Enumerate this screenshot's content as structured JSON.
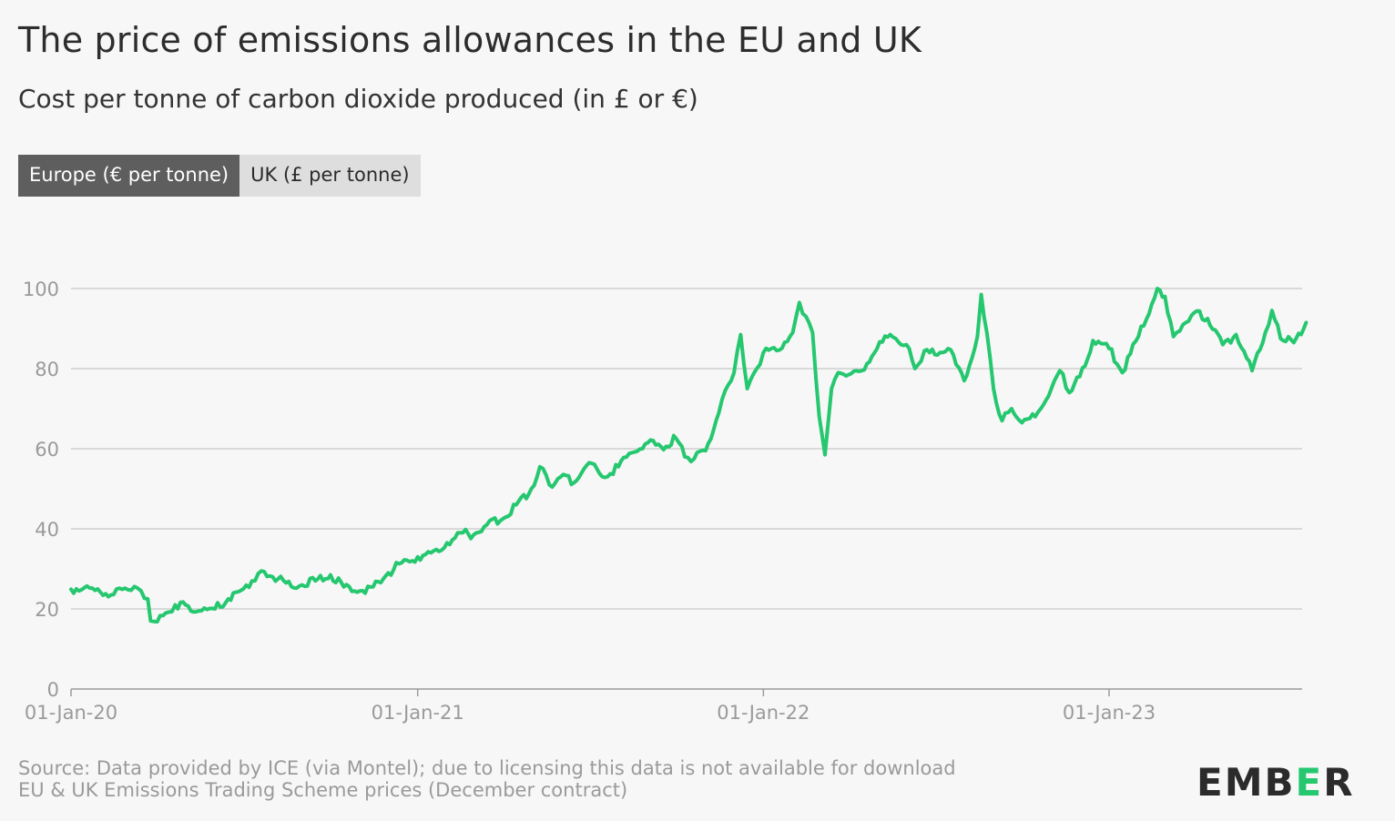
{
  "header": {
    "title": "The price of emissions allowances in the EU and UK",
    "subtitle": "Cost per tonne of carbon dioxide produced (in £ or €)"
  },
  "tabs": [
    {
      "label": "Europe (€ per tonne)",
      "active": true
    },
    {
      "label": "UK (£ per tonne)",
      "active": false
    }
  ],
  "footer": {
    "source": "Source: Data provided by ICE (via Montel); due to licensing this data is not available for download",
    "note": "EU & UK Emissions Trading Scheme prices (December contract)"
  },
  "logo": {
    "pre": "EMB",
    "accent": "E",
    "post": "R"
  },
  "colors": {
    "line": "#25c76f",
    "grid": "#cfcfcf",
    "axis": "#9a9a9a",
    "active_tab": "#5e5e5e",
    "inactive_tab": "#dedede"
  },
  "chart_data": {
    "type": "line",
    "title": "The price of emissions allowances in the EU and UK",
    "subtitle": "Cost per tonne of carbon dioxide produced (in £ or €)",
    "xlabel": "",
    "ylabel": "",
    "ylim": [
      0,
      100
    ],
    "yticks": [
      0,
      20,
      40,
      60,
      80,
      100
    ],
    "xticks": [
      "01-Jan-20",
      "01-Jan-21",
      "01-Jan-22",
      "01-Jan-23"
    ],
    "xlim": [
      "2020-01-01",
      "2023-07-28"
    ],
    "grid": true,
    "legend": "none",
    "series": [
      {
        "name": "Europe (€ per tonne)",
        "color": "#25c76f",
        "points": [
          [
            "2020-01-01",
            24.9
          ],
          [
            "2020-01-15",
            25.3
          ],
          [
            "2020-02-01",
            24.2
          ],
          [
            "2020-02-15",
            23.6
          ],
          [
            "2020-03-01",
            24.8
          ],
          [
            "2020-03-08",
            25.6
          ],
          [
            "2020-03-15",
            24.5
          ],
          [
            "2020-03-22",
            22.5
          ],
          [
            "2020-03-25",
            17.0
          ],
          [
            "2020-04-01",
            16.8
          ],
          [
            "2020-04-10",
            19.0
          ],
          [
            "2020-04-20",
            21.0
          ],
          [
            "2020-05-01",
            21.0
          ],
          [
            "2020-05-15",
            19.5
          ],
          [
            "2020-06-01",
            20.0
          ],
          [
            "2020-06-15",
            22.5
          ],
          [
            "2020-07-01",
            25.0
          ],
          [
            "2020-07-10",
            27.0
          ],
          [
            "2020-07-20",
            29.5
          ],
          [
            "2020-08-01",
            28.0
          ],
          [
            "2020-08-15",
            26.5
          ],
          [
            "2020-09-01",
            26.0
          ],
          [
            "2020-09-15",
            27.0
          ],
          [
            "2020-10-01",
            28.5
          ],
          [
            "2020-10-15",
            25.5
          ],
          [
            "2020-11-01",
            24.5
          ],
          [
            "2020-11-15",
            25.5
          ],
          [
            "2020-12-01",
            29.0
          ],
          [
            "2020-12-15",
            31.5
          ],
          [
            "2021-01-01",
            33.0
          ],
          [
            "2021-01-15",
            34.0
          ],
          [
            "2021-02-01",
            36.5
          ],
          [
            "2021-02-15",
            39.0
          ],
          [
            "2021-03-01",
            38.5
          ],
          [
            "2021-03-15",
            41.0
          ],
          [
            "2021-04-01",
            42.5
          ],
          [
            "2021-04-15",
            46.0
          ],
          [
            "2021-05-01",
            50.0
          ],
          [
            "2021-05-10",
            55.5
          ],
          [
            "2021-05-20",
            51.0
          ],
          [
            "2021-06-01",
            53.0
          ],
          [
            "2021-06-15",
            51.5
          ],
          [
            "2021-07-01",
            56.5
          ],
          [
            "2021-07-15",
            53.0
          ],
          [
            "2021-08-01",
            55.5
          ],
          [
            "2021-08-15",
            59.0
          ],
          [
            "2021-09-01",
            61.5
          ],
          [
            "2021-09-15",
            60.5
          ],
          [
            "2021-10-01",
            62.5
          ],
          [
            "2021-10-10",
            58.0
          ],
          [
            "2021-10-20",
            57.5
          ],
          [
            "2021-11-01",
            59.5
          ],
          [
            "2021-11-15",
            69.0
          ],
          [
            "2021-11-25",
            76.0
          ],
          [
            "2021-12-01",
            79.0
          ],
          [
            "2021-12-08",
            88.5
          ],
          [
            "2021-12-15",
            75.0
          ],
          [
            "2021-12-25",
            80.0
          ],
          [
            "2022-01-01",
            84.0
          ],
          [
            "2022-01-15",
            84.5
          ],
          [
            "2022-02-01",
            89.0
          ],
          [
            "2022-02-08",
            96.5
          ],
          [
            "2022-02-15",
            93.0
          ],
          [
            "2022-02-22",
            89.0
          ],
          [
            "2022-03-01",
            68.0
          ],
          [
            "2022-03-07",
            58.5
          ],
          [
            "2022-03-14",
            75.0
          ],
          [
            "2022-03-21",
            79.0
          ],
          [
            "2022-04-01",
            78.5
          ],
          [
            "2022-04-15",
            79.5
          ],
          [
            "2022-05-01",
            85.0
          ],
          [
            "2022-05-15",
            88.5
          ],
          [
            "2022-06-01",
            86.0
          ],
          [
            "2022-06-10",
            80.0
          ],
          [
            "2022-06-20",
            84.5
          ],
          [
            "2022-07-01",
            83.5
          ],
          [
            "2022-07-15",
            85.0
          ],
          [
            "2022-08-01",
            77.0
          ],
          [
            "2022-08-15",
            88.0
          ],
          [
            "2022-08-19",
            98.5
          ],
          [
            "2022-08-25",
            89.0
          ],
          [
            "2022-09-01",
            75.0
          ],
          [
            "2022-09-10",
            67.0
          ],
          [
            "2022-09-20",
            70.0
          ],
          [
            "2022-10-01",
            66.5
          ],
          [
            "2022-10-15",
            68.0
          ],
          [
            "2022-11-01",
            75.0
          ],
          [
            "2022-11-10",
            79.5
          ],
          [
            "2022-11-20",
            74.0
          ],
          [
            "2022-12-01",
            78.0
          ],
          [
            "2022-12-15",
            87.0
          ],
          [
            "2023-01-01",
            85.0
          ],
          [
            "2023-01-15",
            79.0
          ],
          [
            "2023-02-01",
            88.0
          ],
          [
            "2023-02-15",
            96.0
          ],
          [
            "2023-02-21",
            100.0
          ],
          [
            "2023-03-01",
            98.0
          ],
          [
            "2023-03-10",
            88.0
          ],
          [
            "2023-03-20",
            91.0
          ],
          [
            "2023-04-01",
            94.0
          ],
          [
            "2023-04-15",
            92.5
          ],
          [
            "2023-05-01",
            86.0
          ],
          [
            "2023-05-15",
            88.5
          ],
          [
            "2023-06-01",
            79.5
          ],
          [
            "2023-06-15",
            89.0
          ],
          [
            "2023-06-22",
            94.5
          ],
          [
            "2023-07-01",
            87.5
          ],
          [
            "2023-07-15",
            86.5
          ],
          [
            "2023-07-28",
            91.5
          ]
        ]
      }
    ]
  }
}
